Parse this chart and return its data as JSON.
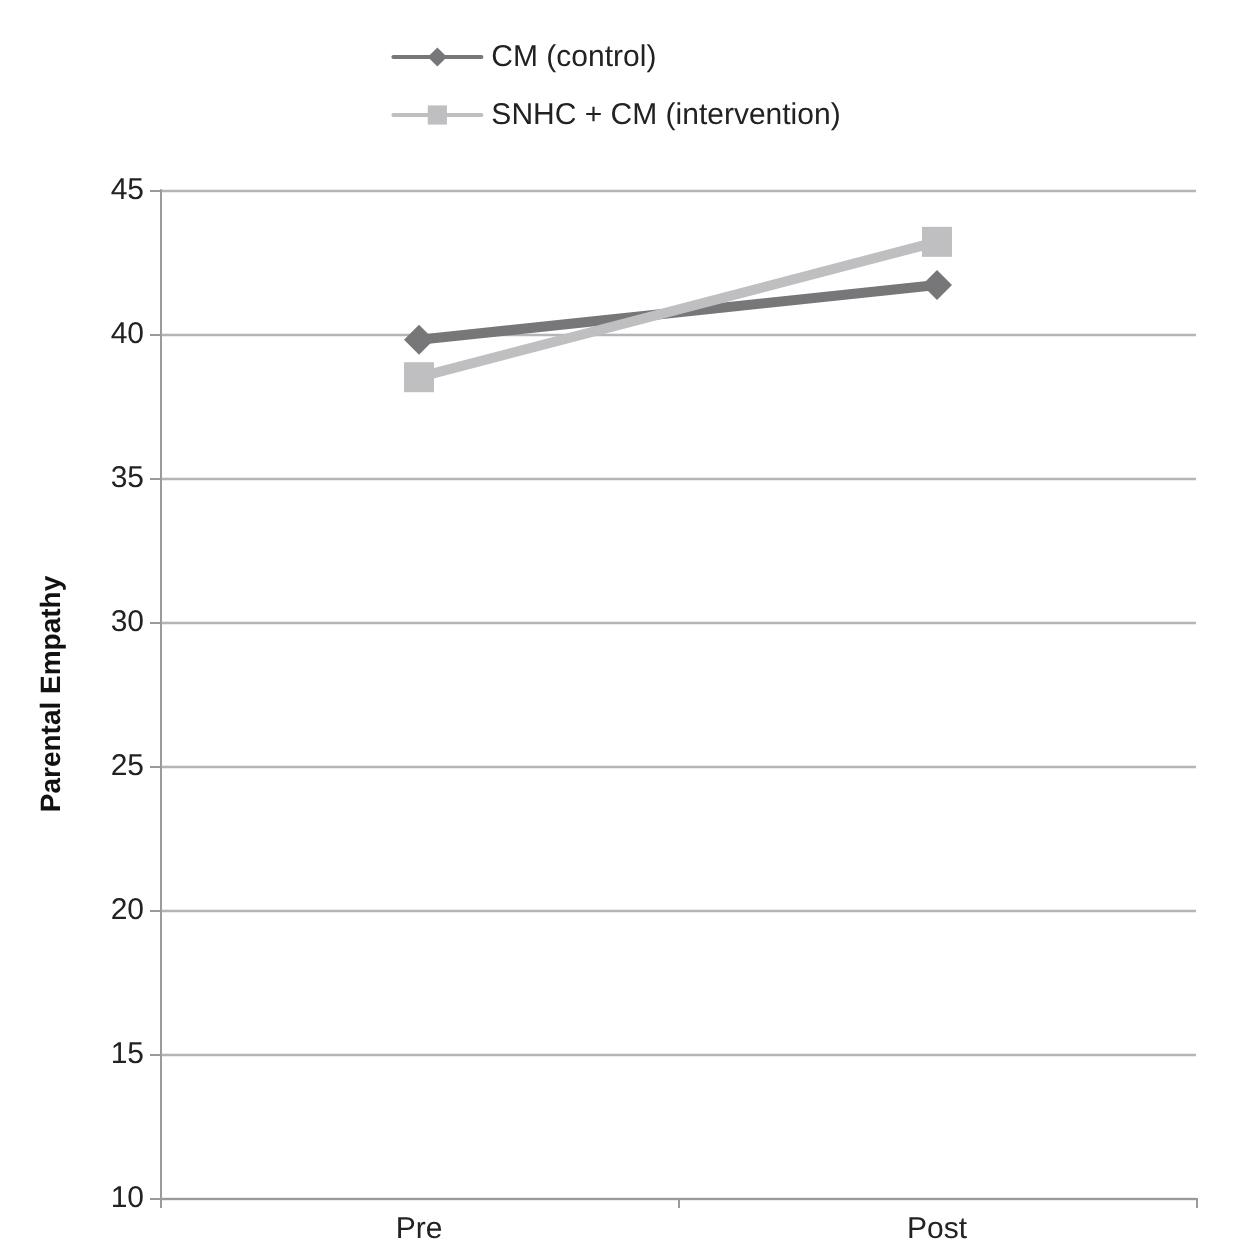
{
  "chart_data": {
    "type": "line",
    "ylabel": "Parental Empathy",
    "categories": [
      "Pre",
      "Post"
    ],
    "series": [
      {
        "name": "CM (control)",
        "color": "#77777a",
        "marker": "diamond",
        "values": [
          39.8,
          41.7
        ]
      },
      {
        "name": "SNHC + CM (intervention)",
        "color": "#bfbfc1",
        "marker": "square",
        "values": [
          38.5,
          43.2
        ]
      }
    ],
    "ylim": [
      10,
      45
    ],
    "yticks": [
      10,
      15,
      20,
      25,
      30,
      35,
      40,
      45
    ],
    "grid": "y",
    "legend": "top",
    "line_style": "solid"
  }
}
